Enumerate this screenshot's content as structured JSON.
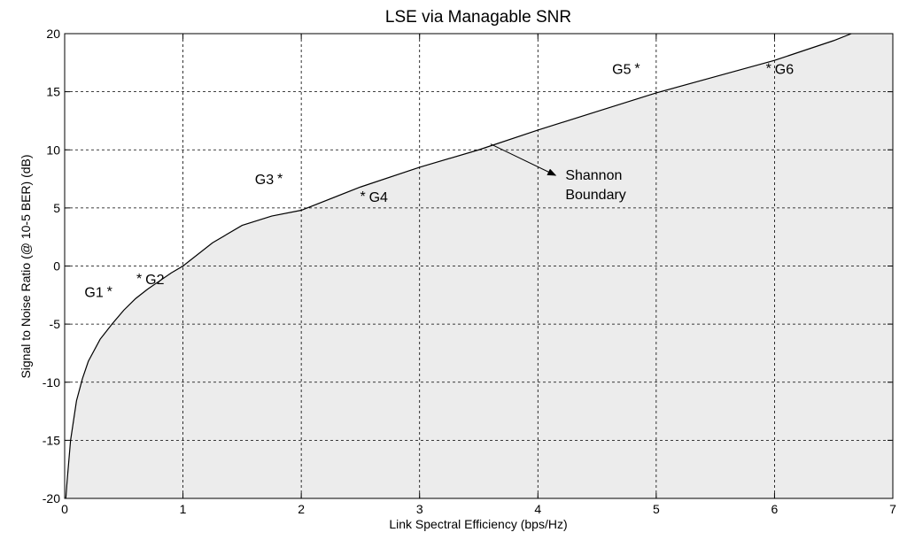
{
  "chart_data": {
    "type": "line",
    "title": "LSE via Managable SNR",
    "xlabel": "Link Spectral Efficiency (bps/Hz)",
    "ylabel": "Signal to Noise Ratio (@ 10-5 BER) (dB)",
    "xlim": [
      0,
      7
    ],
    "ylim": [
      -20,
      20
    ],
    "xticks": [
      "0",
      "1",
      "2",
      "3",
      "4",
      "5",
      "6",
      "7"
    ],
    "yticks": [
      "-20",
      "-15",
      "-10",
      "-5",
      "0",
      "5",
      "10",
      "15",
      "20"
    ],
    "grid": true,
    "shaded_region": "below curve",
    "series": [
      {
        "x": [
          0.01,
          0.02,
          0.05,
          0.1,
          0.15,
          0.2,
          0.3,
          0.4,
          0.5,
          0.6,
          0.7,
          0.8,
          0.9,
          1.0,
          1.25,
          1.5,
          1.75,
          2.0,
          2.5,
          3.0,
          3.5,
          4.0,
          4.5,
          5.0,
          5.5,
          6.0,
          6.5,
          6.65
        ],
        "values": [
          -20.0,
          -18.6,
          -15.0,
          -11.6,
          -9.7,
          -8.2,
          -6.3,
          -5.0,
          -3.8,
          -2.8,
          -2.0,
          -1.3,
          -0.6,
          0.0,
          2.0,
          3.5,
          4.3,
          4.8,
          6.8,
          8.5,
          10.0,
          11.7,
          13.3,
          14.9,
          16.3,
          17.7,
          19.4,
          20.0
        ],
        "color": "#000000"
      }
    ],
    "points": [
      {
        "label": "G1",
        "x": 0.38,
        "y": -2.2
      },
      {
        "label": "G2",
        "x": 0.63,
        "y": -1.1
      },
      {
        "label": "G3",
        "x": 1.82,
        "y": 7.5
      },
      {
        "label": "G4",
        "x": 2.52,
        "y": 6.0
      },
      {
        "label": "G5",
        "x": 4.84,
        "y": 17.0
      },
      {
        "label": "G6",
        "x": 5.95,
        "y": 17.0
      }
    ],
    "annotations": [
      {
        "text_lines": [
          "Shannon",
          "Boundary"
        ],
        "arrow_from": [
          3.6,
          10.5
        ],
        "arrow_to": [
          4.15,
          7.8
        ]
      }
    ],
    "fill_color": "#ececec"
  }
}
